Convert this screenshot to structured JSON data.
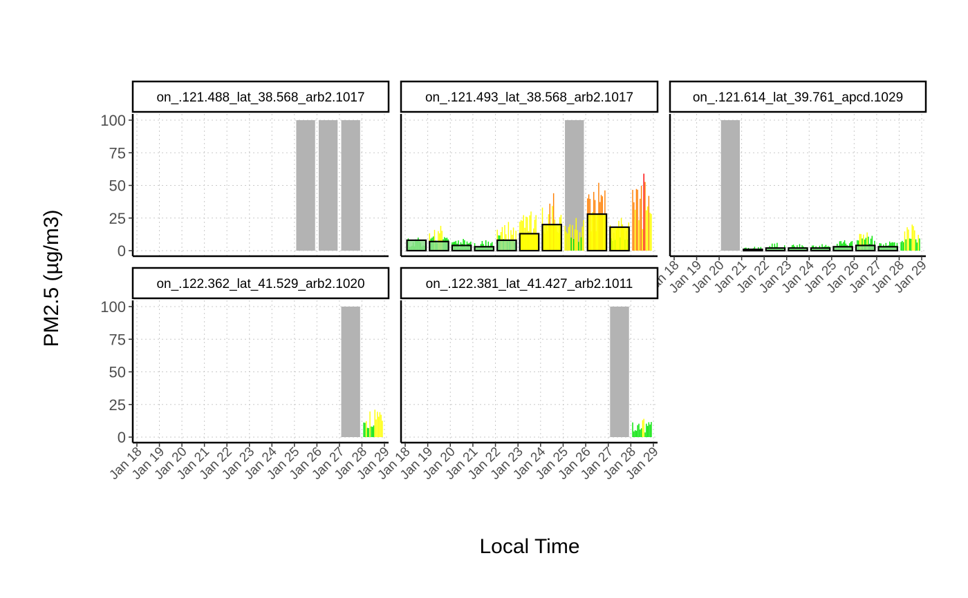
{
  "chart_data": {
    "type": "bar",
    "xlabel": "Local Time",
    "ylabel": "PM2.5 (µg/m3)",
    "y_ticks": [
      "0",
      "25",
      "50",
      "75",
      "100"
    ],
    "x_ticks": [
      "Jan 18",
      "Jan 19",
      "Jan 20",
      "Jan 21",
      "Jan 22",
      "Jan 23",
      "Jan 24",
      "Jan 25",
      "Jan 26",
      "Jan 27",
      "Jan 28",
      "Jan 29"
    ],
    "x_domain": [
      "Jan 18",
      "Jan 29"
    ],
    "ylim": [
      0,
      100
    ],
    "grid": "dotted",
    "colors": {
      "missing": "#b3b3b3",
      "good": "#00e400",
      "moderate": "#ffff00",
      "usg": "#ff7e00",
      "unhealthy": "#ff0000",
      "daily_good": "#8ee08e",
      "daily_outline": "#000000"
    },
    "panels": [
      {
        "label": "on_.121.488_lat_38.568_arb2.1017",
        "missing_days": [
          "Jan 25",
          "Jan 26",
          "Jan 27"
        ],
        "daily_avg": [],
        "hourly": []
      },
      {
        "label": "on_.121.493_lat_38.568_arb2.1017",
        "missing_days": [
          "Jan 25"
        ],
        "daily_avg": [
          {
            "day": "Jan 18",
            "value": 8
          },
          {
            "day": "Jan 19",
            "value": 7
          },
          {
            "day": "Jan 20",
            "value": 4
          },
          {
            "day": "Jan 21",
            "value": 3
          },
          {
            "day": "Jan 22",
            "value": 8
          },
          {
            "day": "Jan 23",
            "value": 13
          },
          {
            "day": "Jan 24",
            "value": 20
          },
          {
            "day": "Jan 26",
            "value": 28
          },
          {
            "day": "Jan 27",
            "value": 18
          }
        ],
        "hourly": [
          {
            "day": "Jan 18",
            "peak": 10
          },
          {
            "day": "Jan 19",
            "peak": 19
          },
          {
            "day": "Jan 20",
            "peak": 9
          },
          {
            "day": "Jan 21",
            "peak": 8
          },
          {
            "day": "Jan 22",
            "peak": 22
          },
          {
            "day": "Jan 23",
            "peak": 30
          },
          {
            "day": "Jan 24",
            "peak": 44
          },
          {
            "day": "Jan 25",
            "peak": 25
          },
          {
            "day": "Jan 26",
            "peak": 52
          },
          {
            "day": "Jan 27",
            "peak": 25
          },
          {
            "day": "Jan 28",
            "peak": 59
          }
        ]
      },
      {
        "label": "on_.121.614_lat_39.761_apcd.1029",
        "missing_days": [
          "Jan 20"
        ],
        "daily_avg": [
          {
            "day": "Jan 21",
            "value": 1
          },
          {
            "day": "Jan 22",
            "value": 2
          },
          {
            "day": "Jan 23",
            "value": 2
          },
          {
            "day": "Jan 24",
            "value": 2
          },
          {
            "day": "Jan 25",
            "value": 3
          },
          {
            "day": "Jan 26",
            "value": 4
          },
          {
            "day": "Jan 27",
            "value": 3
          }
        ],
        "hourly": [
          {
            "day": "Jan 21",
            "peak": 3
          },
          {
            "day": "Jan 22",
            "peak": 6
          },
          {
            "day": "Jan 23",
            "peak": 5
          },
          {
            "day": "Jan 24",
            "peak": 5
          },
          {
            "day": "Jan 25",
            "peak": 8
          },
          {
            "day": "Jan 26",
            "peak": 14
          },
          {
            "day": "Jan 27",
            "peak": 7
          },
          {
            "day": "Jan 28",
            "peak": 20
          }
        ]
      },
      {
        "label": "on_.122.362_lat_41.529_arb2.1020",
        "missing_days": [
          "Jan 27"
        ],
        "daily_avg": [],
        "hourly": [
          {
            "day": "Jan 28",
            "peak": 21
          }
        ]
      },
      {
        "label": "on_.122.381_lat_41.427_arb2.1011",
        "missing_days": [
          "Jan 27"
        ],
        "daily_avg": [],
        "hourly": [
          {
            "day": "Jan 28",
            "peak": 14
          }
        ]
      }
    ]
  }
}
